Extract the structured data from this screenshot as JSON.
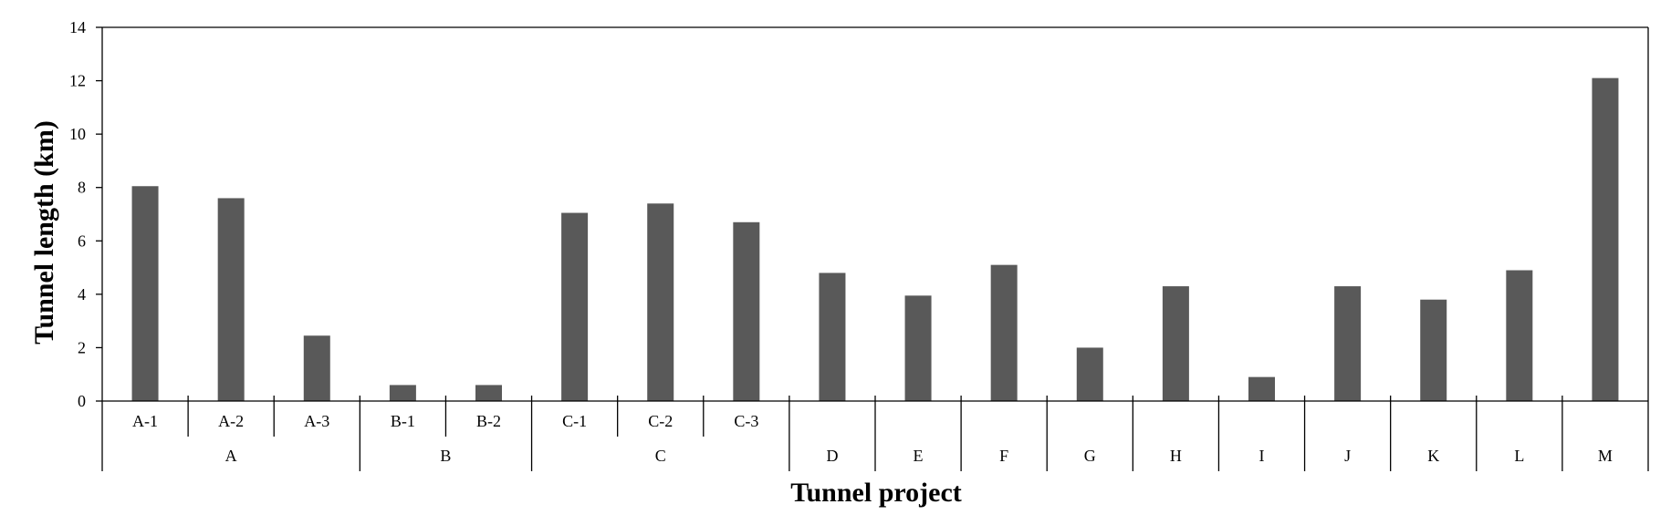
{
  "chart_data": {
    "type": "bar",
    "title": "",
    "xlabel": "Tunnel project",
    "ylabel": "Tunnel length (km)",
    "ylim": [
      0,
      14
    ],
    "yticks": [
      "0",
      "2",
      "4",
      "6",
      "8",
      "10",
      "12",
      "14"
    ],
    "grid": false,
    "legend": "none",
    "bar_color": "#595959",
    "categories": [
      {
        "group": "A",
        "sub": "A-1",
        "value": 8.05
      },
      {
        "group": "A",
        "sub": "A-2",
        "value": 7.6
      },
      {
        "group": "A",
        "sub": "A-3",
        "value": 2.45
      },
      {
        "group": "B",
        "sub": "B-1",
        "value": 0.6
      },
      {
        "group": "B",
        "sub": "B-2",
        "value": 0.6
      },
      {
        "group": "C",
        "sub": "C-1",
        "value": 7.05
      },
      {
        "group": "C",
        "sub": "C-2",
        "value": 7.4
      },
      {
        "group": "C",
        "sub": "C-3",
        "value": 6.7
      },
      {
        "group": "D",
        "sub": "",
        "value": 4.8
      },
      {
        "group": "E",
        "sub": "",
        "value": 3.95
      },
      {
        "group": "F",
        "sub": "",
        "value": 5.1
      },
      {
        "group": "G",
        "sub": "",
        "value": 2.0
      },
      {
        "group": "H",
        "sub": "",
        "value": 4.3
      },
      {
        "group": "I",
        "sub": "",
        "value": 0.9
      },
      {
        "group": "J",
        "sub": "",
        "value": 4.3
      },
      {
        "group": "K",
        "sub": "",
        "value": 3.8
      },
      {
        "group": "L",
        "sub": "",
        "value": 4.9
      },
      {
        "group": "M",
        "sub": "",
        "value": 12.1
      }
    ]
  }
}
